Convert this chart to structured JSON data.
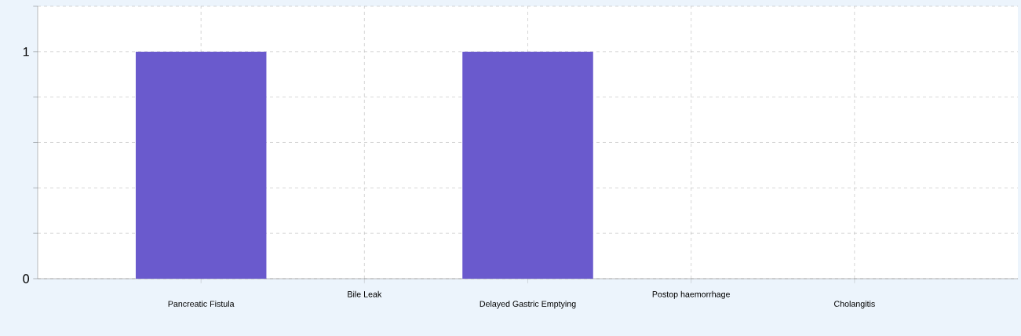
{
  "chart_data": {
    "type": "bar",
    "categories": [
      "Pancreatic Fistula",
      "Bile Leak",
      "Delayed Gastric Emptying",
      "Postop haemorrhage",
      "Cholangitis"
    ],
    "values": [
      1,
      0,
      1,
      0,
      0
    ],
    "color": "#6a5acd",
    "ylim": [
      0,
      1.2
    ],
    "yticks": [
      0,
      {
        "value": 0.2,
        "label": null
      },
      {
        "value": 0.4,
        "label": null
      },
      {
        "value": 0.6,
        "label": null
      },
      {
        "value": 0.8,
        "label": null
      },
      1,
      {
        "value": 1.2,
        "label": null
      }
    ],
    "grid": true
  }
}
